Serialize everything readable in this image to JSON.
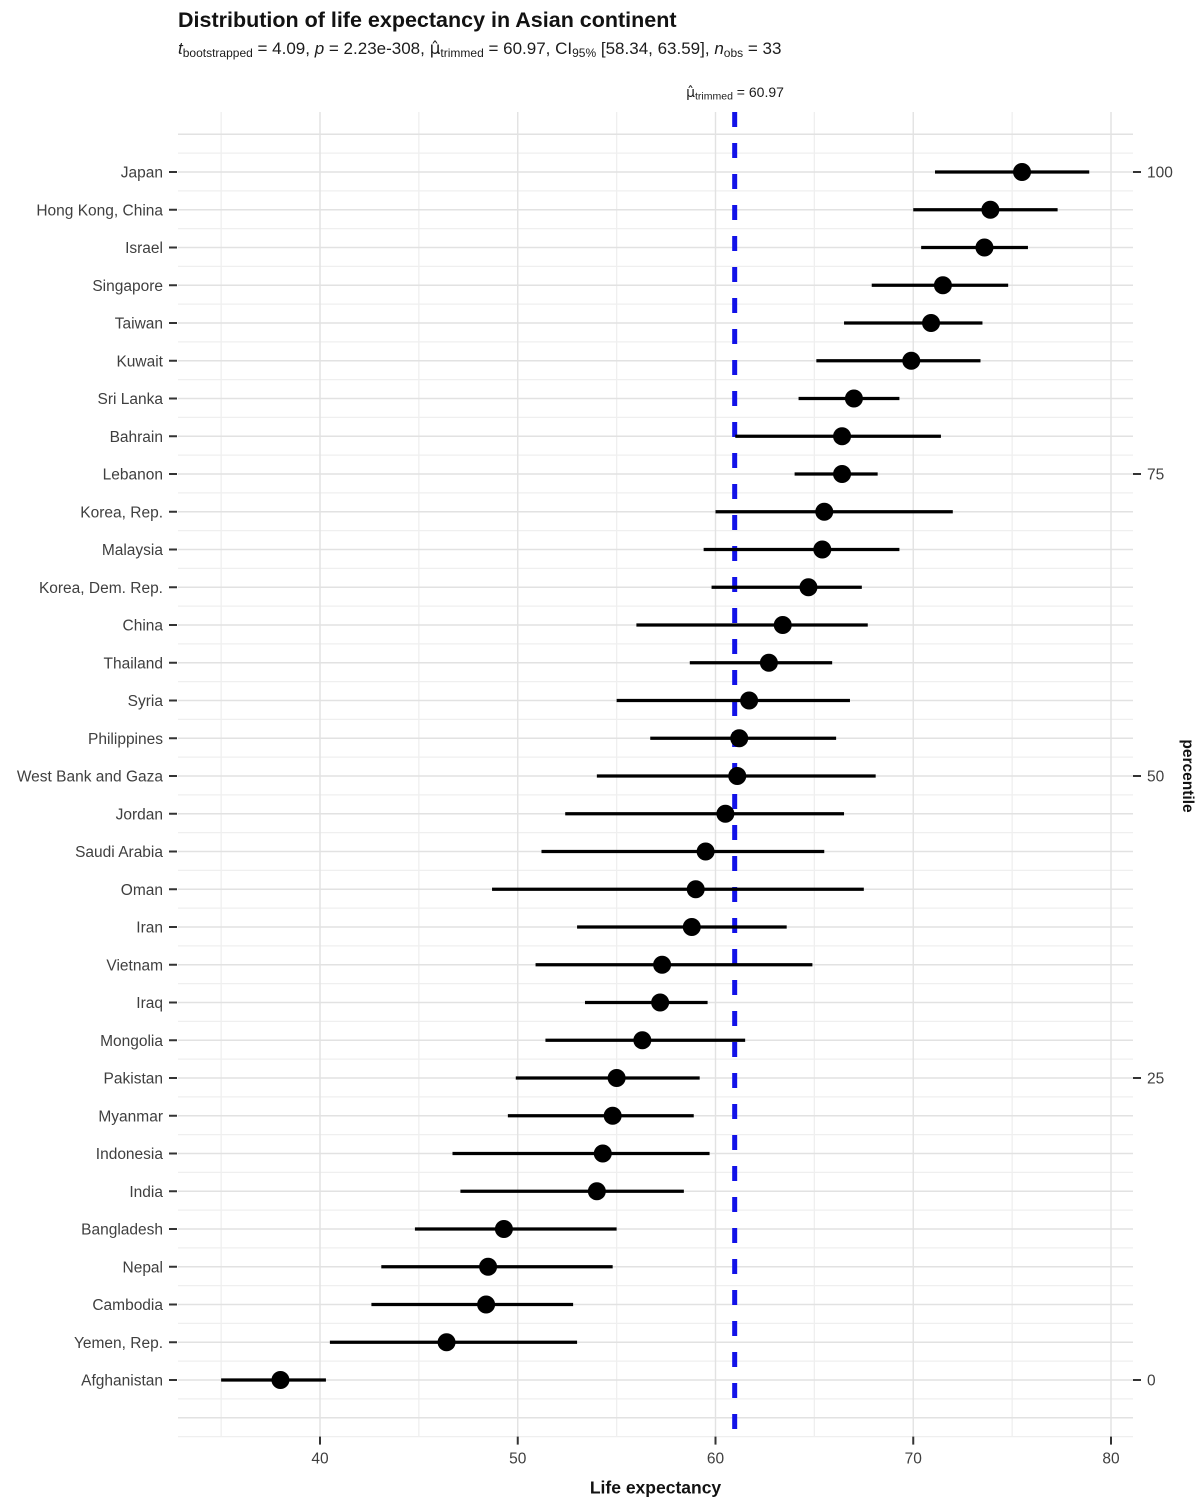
{
  "chart_data": {
    "type": "scatter",
    "title": "Distribution of life expectancy in Asian continent",
    "subtitle_plain": "t bootstrapped = 4.09, p = 2.23e-308, mu-hat trimmed = 60.97, CI 95% [58.34, 63.59], n obs = 33",
    "subtitle_parts": [
      {
        "text": "t",
        "style": "it"
      },
      {
        "text": "bootstrapped",
        "style": "sub"
      },
      {
        "text": " = 4.09, ",
        "style": "norm"
      },
      {
        "text": "p",
        "style": "it"
      },
      {
        "text": " = 2.23e-308, ",
        "style": "norm"
      },
      {
        "text": "μ̂",
        "style": "mu"
      },
      {
        "text": "trimmed",
        "style": "sub"
      },
      {
        "text": " = 60.97, CI",
        "style": "norm"
      },
      {
        "text": "95%",
        "style": "sub"
      },
      {
        "text": " [58.34, 63.59], ",
        "style": "norm"
      },
      {
        "text": "n",
        "style": "it"
      },
      {
        "text": "obs",
        "style": "sub"
      },
      {
        "text": " = 33",
        "style": "norm"
      }
    ],
    "vline_annotation_plain": "mu-hat trimmed = 60.97",
    "vline_annotation_parts": [
      {
        "text": "μ̂",
        "style": "mu"
      },
      {
        "text": "trimmed",
        "style": "sub"
      },
      {
        "text": " = 60.97",
        "style": "norm"
      }
    ],
    "xlabel": "Life expectancy",
    "y2label": "percentile",
    "xlim": [
      32.8,
      81.1
    ],
    "x_major_ticks": [
      40,
      50,
      60,
      70,
      80
    ],
    "x_minor_ticks": [
      35,
      45,
      55,
      65,
      75
    ],
    "grid": true,
    "legend": false,
    "vline": {
      "value": 60.97,
      "style": "dashed"
    },
    "y2_ticks": [
      {
        "label": "100",
        "percentile": 100
      },
      {
        "label": "75",
        "percentile": 75
      },
      {
        "label": "50",
        "percentile": 50
      },
      {
        "label": "25",
        "percentile": 25
      },
      {
        "label": "0",
        "percentile": 0
      }
    ],
    "points": [
      {
        "country": "Japan",
        "value": 75.5,
        "ci_low": 71.1,
        "ci_high": 78.9
      },
      {
        "country": "Hong Kong, China",
        "value": 73.9,
        "ci_low": 70.0,
        "ci_high": 77.3
      },
      {
        "country": "Israel",
        "value": 73.6,
        "ci_low": 70.4,
        "ci_high": 75.8
      },
      {
        "country": "Singapore",
        "value": 71.5,
        "ci_low": 67.9,
        "ci_high": 74.8
      },
      {
        "country": "Taiwan",
        "value": 70.9,
        "ci_low": 66.5,
        "ci_high": 73.5
      },
      {
        "country": "Kuwait",
        "value": 69.9,
        "ci_low": 65.1,
        "ci_high": 73.4
      },
      {
        "country": "Sri Lanka",
        "value": 67.0,
        "ci_low": 64.2,
        "ci_high": 69.3
      },
      {
        "country": "Bahrain",
        "value": 66.4,
        "ci_low": 61.0,
        "ci_high": 71.4
      },
      {
        "country": "Lebanon",
        "value": 66.4,
        "ci_low": 64.0,
        "ci_high": 68.2
      },
      {
        "country": "Korea, Rep.",
        "value": 65.5,
        "ci_low": 60.0,
        "ci_high": 72.0
      },
      {
        "country": "Malaysia",
        "value": 65.4,
        "ci_low": 59.4,
        "ci_high": 69.3
      },
      {
        "country": "Korea, Dem. Rep.",
        "value": 64.7,
        "ci_low": 59.8,
        "ci_high": 67.4
      },
      {
        "country": "China",
        "value": 63.4,
        "ci_low": 56.0,
        "ci_high": 67.7
      },
      {
        "country": "Thailand",
        "value": 62.7,
        "ci_low": 58.7,
        "ci_high": 65.9
      },
      {
        "country": "Syria",
        "value": 61.7,
        "ci_low": 55.0,
        "ci_high": 66.8
      },
      {
        "country": "Philippines",
        "value": 61.2,
        "ci_low": 56.7,
        "ci_high": 66.1
      },
      {
        "country": "West Bank and Gaza",
        "value": 61.1,
        "ci_low": 54.0,
        "ci_high": 68.1
      },
      {
        "country": "Jordan",
        "value": 60.5,
        "ci_low": 52.4,
        "ci_high": 66.5
      },
      {
        "country": "Saudi Arabia",
        "value": 59.5,
        "ci_low": 51.2,
        "ci_high": 65.5
      },
      {
        "country": "Oman",
        "value": 59.0,
        "ci_low": 48.7,
        "ci_high": 67.5
      },
      {
        "country": "Iran",
        "value": 58.8,
        "ci_low": 53.0,
        "ci_high": 63.6
      },
      {
        "country": "Vietnam",
        "value": 57.3,
        "ci_low": 50.9,
        "ci_high": 64.9
      },
      {
        "country": "Iraq",
        "value": 57.2,
        "ci_low": 53.4,
        "ci_high": 59.6
      },
      {
        "country": "Mongolia",
        "value": 56.3,
        "ci_low": 51.4,
        "ci_high": 61.5
      },
      {
        "country": "Pakistan",
        "value": 55.0,
        "ci_low": 49.9,
        "ci_high": 59.2
      },
      {
        "country": "Myanmar",
        "value": 54.8,
        "ci_low": 49.5,
        "ci_high": 58.9
      },
      {
        "country": "Indonesia",
        "value": 54.3,
        "ci_low": 46.7,
        "ci_high": 59.7
      },
      {
        "country": "India",
        "value": 54.0,
        "ci_low": 47.1,
        "ci_high": 58.4
      },
      {
        "country": "Bangladesh",
        "value": 49.3,
        "ci_low": 44.8,
        "ci_high": 55.0
      },
      {
        "country": "Nepal",
        "value": 48.5,
        "ci_low": 43.1,
        "ci_high": 54.8
      },
      {
        "country": "Cambodia",
        "value": 48.4,
        "ci_low": 42.6,
        "ci_high": 52.8
      },
      {
        "country": "Yemen, Rep.",
        "value": 46.4,
        "ci_low": 40.5,
        "ci_high": 53.0
      },
      {
        "country": "Afghanistan",
        "value": 38.0,
        "ci_low": 35.0,
        "ci_high": 40.3
      }
    ],
    "colors": {
      "point": "#000000",
      "error_bar": "#000000",
      "vline": "#1212E8",
      "grid_major": "#E2E2E2",
      "grid_minor": "#EFEFEF",
      "axis_text": "#3F3F3F",
      "tick_mark": "#333333",
      "title_text": "#121212"
    }
  }
}
